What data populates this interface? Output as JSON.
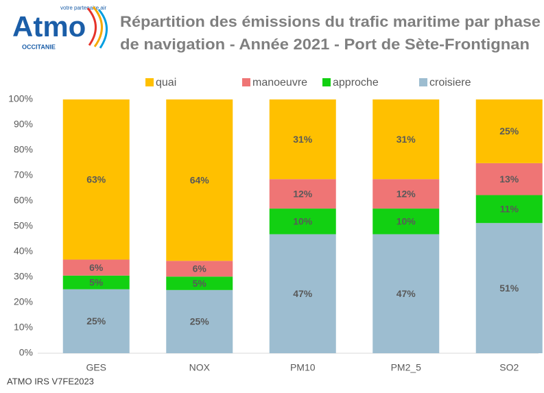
{
  "logo": {
    "name": "Atmo",
    "tagline": "votre partenaire air",
    "region": "OCCITANIE"
  },
  "chart_data": {
    "type": "stacked_bar",
    "title": [
      "Répartition des émissions du trafic maritime par phase",
      "de navigation - Année 2021 - Port de Sète-Frontignan"
    ],
    "categories": [
      "GES",
      "NOX",
      "PM10",
      "PM2_5",
      "SO2"
    ],
    "series": [
      {
        "name": "croisiere",
        "color": "#9dbdd0",
        "values": [
          25.2,
          24.9,
          46.9,
          46.9,
          51.3
        ],
        "value_labels": [
          "25%",
          "25%",
          "47%",
          "47%",
          "51%"
        ]
      },
      {
        "name": "approche",
        "color": "#12d012",
        "values": [
          5.4,
          5.3,
          10.1,
          10.1,
          11.0
        ],
        "value_labels": [
          "5%",
          "5%",
          "10%",
          "10%",
          "11%"
        ]
      },
      {
        "name": "manoeuvre",
        "color": "#ef7575",
        "values": [
          6.3,
          6.2,
          11.6,
          11.6,
          12.6
        ],
        "value_labels": [
          "6%",
          "6%",
          "12%",
          "12%",
          "13%"
        ]
      },
      {
        "name": "quai",
        "color": "#ffc000",
        "values": [
          63.1,
          63.6,
          31.4,
          31.4,
          25.1
        ],
        "value_labels": [
          "63%",
          "64%",
          "31%",
          "31%",
          "25%"
        ]
      }
    ],
    "ylim": [
      0,
      100
    ],
    "yticks": [
      {
        "value": 0,
        "label": "0%"
      },
      {
        "value": 10,
        "label": "10%"
      },
      {
        "value": 20,
        "label": "20%"
      },
      {
        "value": 30,
        "label": "30%"
      },
      {
        "value": 40,
        "label": "40%"
      },
      {
        "value": 50,
        "label": "50%"
      },
      {
        "value": 60,
        "label": "60%"
      },
      {
        "value": 70,
        "label": "70%"
      },
      {
        "value": 80,
        "label": "80%"
      },
      {
        "value": 90,
        "label": "90%"
      },
      {
        "value": 100,
        "label": "100%"
      }
    ],
    "grid": false,
    "legend": "top",
    "source": "ATMO  IRS  V7FE2023"
  }
}
